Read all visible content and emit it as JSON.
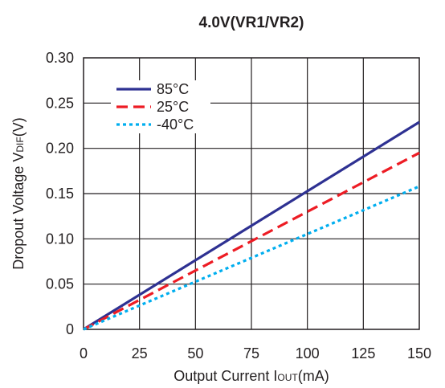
{
  "chart_data": {
    "type": "line",
    "title": "4.0V(VR1/VR2)",
    "xlabel": {
      "main": "Output Current I",
      "sub": "OUT",
      "unit": "(mA)"
    },
    "ylabel": {
      "main": "Dropout Voltage V",
      "sub": "DIF",
      "unit": "(V)"
    },
    "xlim": [
      0,
      150
    ],
    "ylim": [
      0,
      0.3
    ],
    "x_ticks": [
      0,
      25,
      50,
      75,
      100,
      125,
      150
    ],
    "x_tick_labels": [
      "0",
      "25",
      "50",
      "75",
      "100",
      "125",
      "150"
    ],
    "y_ticks": [
      0,
      0.05,
      0.1,
      0.15,
      0.2,
      0.25,
      0.3
    ],
    "y_tick_labels": [
      "0",
      "0.05",
      "0.10",
      "0.15",
      "0.20",
      "0.25",
      "0.30"
    ],
    "grid": true,
    "legend_position": "top-left",
    "series": [
      {
        "name": "85°C",
        "color": "#2e3192",
        "style": "solid",
        "x": [
          0,
          150
        ],
        "y": [
          0,
          0.229
        ]
      },
      {
        "name": "25°C",
        "color": "#ed1c24",
        "style": "dashed",
        "x": [
          0,
          150
        ],
        "y": [
          0,
          0.195
        ]
      },
      {
        "name": "-40°C",
        "color": "#00aeef",
        "style": "dotted",
        "x": [
          0,
          150
        ],
        "y": [
          0,
          0.158
        ]
      }
    ]
  }
}
